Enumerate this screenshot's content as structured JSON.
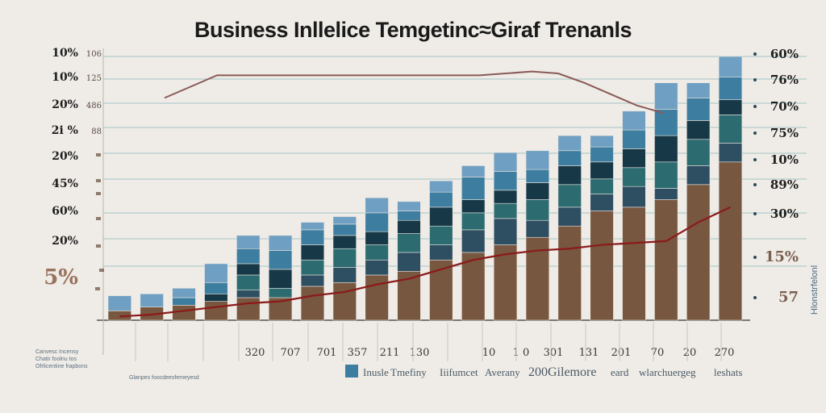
{
  "title": "Business Inllelice Temgetinc≈Giraf Trenanls",
  "colors": {
    "background": "#efece7",
    "brown": "#77573f",
    "teal": "#2c6b70",
    "dark_teal": "#173846",
    "blue": "#3d7ea0",
    "light_blue": "#6f9fc2",
    "slate": "#2e4e62",
    "red_line": "#8b1a1a",
    "trend_line": "#8a5a57",
    "gridline": "#a8c8c8"
  },
  "chart_data": {
    "type": "bar",
    "title": "Business Inllelice Temgetinc≈Giraf Trenanls",
    "left_tick_labels": [
      "10%",
      "10%",
      "20%",
      "2i %",
      "20%",
      "45%",
      "60%",
      "20%",
      "5%"
    ],
    "left_inner_tick_labels": [
      "106",
      "125",
      "486",
      "88",
      "",
      "",
      "",
      "",
      ""
    ],
    "right_tick_labels": [
      "60%",
      "76%",
      "70%",
      "75%",
      "10%",
      "89%",
      "30%",
      "15%",
      "57"
    ],
    "x_tick_labels": [
      "320",
      "707",
      "701",
      "357",
      "211",
      "130",
      "10",
      "1 0",
      "301",
      "131",
      "201",
      "70",
      "20",
      "270"
    ],
    "legend": {
      "items": [
        "Inusle",
        "Tmefiny",
        "Iiifumcet",
        "Averany",
        "200Gilemore",
        "eard",
        "wlarchuergeg",
        "leshats"
      ]
    },
    "notes_left": [
      "Canvesc Incensy",
      "Chatir foolnu tos",
      "Ofrlicentine frapbons",
      "Glanpes foocdeesfemeyesd"
    ],
    "right_side_label": "Hlonstrfelonl",
    "stack_order": [
      "brown",
      "slate",
      "teal",
      "dark_teal",
      "blue",
      "light_blue"
    ],
    "bars": [
      {
        "segments": [
          5,
          0,
          0,
          0,
          0,
          8
        ]
      },
      {
        "segments": [
          7,
          0,
          0,
          0,
          0,
          7
        ]
      },
      {
        "segments": [
          8,
          0,
          0,
          0,
          4,
          5
        ]
      },
      {
        "segments": [
          10,
          0,
          0,
          4,
          6,
          10
        ]
      },
      {
        "segments": [
          12,
          4,
          8,
          6,
          8,
          7
        ]
      },
      {
        "segments": [
          12,
          0,
          5,
          10,
          10,
          8
        ]
      },
      {
        "segments": [
          18,
          6,
          8,
          8,
          8,
          4
        ]
      },
      {
        "segments": [
          20,
          8,
          10,
          7,
          6,
          4
        ]
      },
      {
        "segments": [
          24,
          8,
          8,
          7,
          10,
          8
        ]
      },
      {
        "segments": [
          26,
          10,
          10,
          7,
          5,
          5
        ]
      },
      {
        "segments": [
          32,
          8,
          10,
          10,
          8,
          6
        ]
      },
      {
        "segments": [
          36,
          12,
          9,
          7,
          12,
          6
        ]
      },
      {
        "segments": [
          40,
          14,
          8,
          7,
          10,
          10
        ]
      },
      {
        "segments": [
          44,
          9,
          11,
          9,
          7,
          10
        ]
      },
      {
        "segments": [
          50,
          10,
          12,
          10,
          8,
          8
        ]
      },
      {
        "segments": [
          58,
          9,
          8,
          9,
          8,
          6
        ]
      },
      {
        "segments": [
          60,
          11,
          10,
          10,
          10,
          10
        ]
      },
      {
        "segments": [
          64,
          6,
          14,
          14,
          14,
          14
        ]
      },
      {
        "segments": [
          72,
          10,
          14,
          10,
          12,
          8
        ]
      },
      {
        "segments": [
          84,
          10,
          15,
          8,
          12,
          11
        ]
      }
    ],
    "red_line": [
      2,
      3,
      5,
      7,
      9,
      10,
      13,
      15,
      19,
      22,
      27,
      32,
      35,
      37,
      38,
      40,
      41,
      42,
      52,
      60
    ],
    "trend_line": [
      118,
      124,
      130,
      130,
      130,
      130,
      130,
      130,
      130,
      130,
      130,
      130,
      130,
      131,
      132,
      131,
      126,
      120,
      114,
      110
    ],
    "ylim": [
      0,
      140
    ],
    "grid": true
  }
}
